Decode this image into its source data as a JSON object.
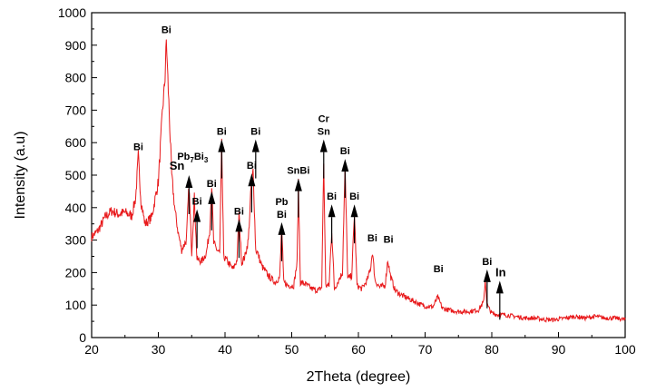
{
  "chart_data": {
    "type": "line",
    "title": "",
    "xlabel": "2Theta (degree)",
    "ylabel": "Intensity (a.u)",
    "xlim": [
      20,
      100
    ],
    "ylim": [
      0,
      1000
    ],
    "x_ticks": [
      "20",
      "30",
      "40",
      "50",
      "60",
      "70",
      "80",
      "90",
      "100"
    ],
    "y_ticks": [
      "0",
      "100",
      "200",
      "300",
      "400",
      "500",
      "600",
      "700",
      "800",
      "900",
      "1000"
    ],
    "grid": false,
    "legend": "none",
    "line_color": "#e8191b",
    "series": [
      {
        "x": [
          20,
          21,
          22,
          23,
          24,
          25,
          26,
          26.6,
          27.0,
          27.4,
          28.0,
          29.0,
          30.0,
          30.6,
          31.0,
          31.2,
          31.5,
          32.0,
          32.5,
          33.0,
          33.5,
          34.2,
          34.6,
          35.0,
          35.4,
          35.8,
          36.5,
          37.2,
          37.7,
          38.0,
          38.3,
          38.8,
          39.2,
          39.5,
          39.8,
          40.5,
          41.2,
          41.8,
          42.1,
          42.5,
          43.0,
          43.5,
          43.9,
          44.2,
          44.4,
          44.6,
          44.9,
          45.5,
          46.5,
          47.5,
          48.2,
          48.5,
          48.8,
          49.5,
          50.3,
          50.8,
          51.0,
          51.3,
          52.0,
          53.0,
          54.0,
          54.5,
          54.8,
          55.1,
          55.6,
          56.0,
          56.4,
          57.0,
          57.6,
          58.0,
          58.4,
          59.0,
          59.4,
          59.8,
          60.5,
          61.3,
          61.8,
          62.1,
          62.5,
          63.2,
          64.0,
          64.4,
          64.8,
          65.5,
          66.5,
          67.5,
          68.5,
          69.5,
          70.5,
          71.2,
          71.9,
          72.6,
          73.5,
          75.0,
          76.5,
          78.0,
          78.8,
          79.0,
          79.3,
          80.0,
          81.0,
          82.0,
          83.5,
          85.0,
          86.5,
          88.0,
          89.5,
          91.0,
          92.5,
          94.0,
          95.5,
          97.0,
          98.5,
          100
        ],
        "y": [
          310,
          330,
          370,
          390,
          380,
          385,
          375,
          430,
          560,
          420,
          350,
          370,
          480,
          690,
          800,
          915,
          760,
          500,
          390,
          320,
          270,
          300,
          470,
          260,
          430,
          240,
          235,
          260,
          330,
          470,
          290,
          270,
          260,
          590,
          250,
          230,
          210,
          240,
          380,
          230,
          250,
          300,
          460,
          510,
          400,
          270,
          260,
          220,
          190,
          170,
          185,
          340,
          170,
          160,
          160,
          230,
          470,
          170,
          165,
          150,
          145,
          155,
          540,
          160,
          160,
          330,
          150,
          175,
          200,
          520,
          180,
          190,
          380,
          160,
          150,
          175,
          210,
          265,
          175,
          155,
          160,
          240,
          190,
          145,
          130,
          120,
          110,
          100,
          95,
          95,
          125,
          90,
          85,
          80,
          80,
          85,
          110,
          180,
          100,
          75,
          70,
          70,
          65,
          60,
          60,
          55,
          55,
          60,
          65,
          60,
          65,
          60,
          60,
          55
        ]
      }
    ],
    "peak_annotations": [
      {
        "x": 27.0,
        "y": 560,
        "label": "Bi",
        "arrow": false
      },
      {
        "x": 31.2,
        "y": 920,
        "label": "Bi",
        "arrow": false
      },
      {
        "x": 34.6,
        "y": 500,
        "label": "Pb7Bi3",
        "label_main": "Pb",
        "label_sub1": "7",
        "label_mid": "Bi",
        "label_sub2": "3",
        "arrow": true
      },
      {
        "x": 32.8,
        "y": 500,
        "label": "Sn",
        "arrow": false,
        "big": true
      },
      {
        "x": 35.8,
        "y": 395,
        "label": "Bi",
        "arrow": true
      },
      {
        "x": 38.0,
        "y": 450,
        "label": "Bi",
        "arrow": true
      },
      {
        "x": 39.5,
        "y": 610,
        "label": "Bi",
        "arrow": true
      },
      {
        "x": 42.1,
        "y": 365,
        "label": "Bi",
        "arrow": true
      },
      {
        "x": 44.0,
        "y": 505,
        "label": "Bi",
        "arrow": true
      },
      {
        "x": 44.6,
        "y": 610,
        "label": "Bi",
        "arrow": true
      },
      {
        "x": 48.5,
        "y": 355,
        "label": "Bi",
        "label_top": "Pb",
        "arrow": true
      },
      {
        "x": 51.0,
        "y": 490,
        "label": "SnBi",
        "arrow": true
      },
      {
        "x": 54.8,
        "y": 610,
        "label": "Sn",
        "label_top": "Cr",
        "arrow": true
      },
      {
        "x": 56.0,
        "y": 410,
        "label": "Bi",
        "arrow": true
      },
      {
        "x": 58.0,
        "y": 550,
        "label": "Bi",
        "arrow": true
      },
      {
        "x": 59.4,
        "y": 410,
        "label": "Bi",
        "arrow": true
      },
      {
        "x": 62.1,
        "y": 280,
        "label": "Bi",
        "arrow": false
      },
      {
        "x": 64.5,
        "y": 275,
        "label": "Bi",
        "arrow": false
      },
      {
        "x": 72.0,
        "y": 185,
        "label": "Bi",
        "arrow": false
      },
      {
        "x": 79.3,
        "y": 210,
        "label": "Bi",
        "arrow": true
      },
      {
        "x": 81.2,
        "y": 175,
        "label": "In",
        "arrow": true,
        "big": true
      }
    ]
  }
}
